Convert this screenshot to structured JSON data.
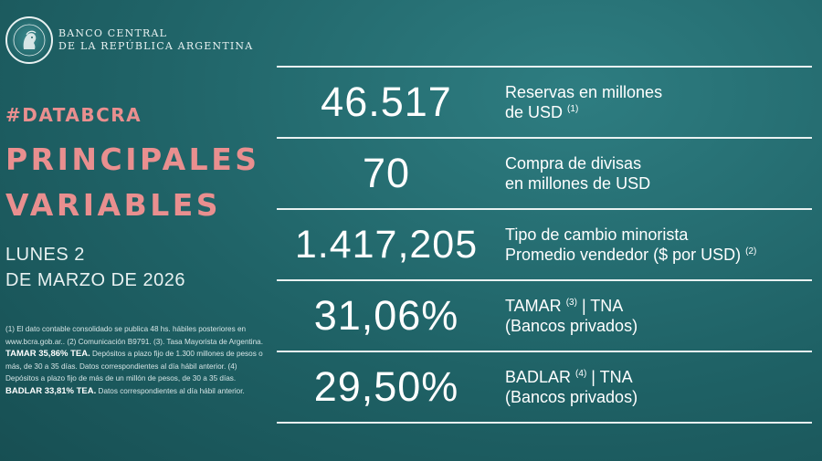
{
  "brand": {
    "line1": "BANCO CENTRAL",
    "line2": "DE LA REPÚBLICA ARGENTINA"
  },
  "hashtag": "#DATABCRA",
  "title": {
    "line1": "PRINCIPALES",
    "line2": "VARIABLES"
  },
  "date": {
    "line1": "LUNES 2",
    "line2": "DE MARZO DE 2026"
  },
  "notes": {
    "part1": "(1) El dato contable consolidado se publica 48 hs. hábiles posteriores en www.bcra.gob.ar.. (2) Comunicación B9791. (3). Tasa Mayorista de Argentina.",
    "tamar_tea": "TAMAR 35,86% TEA.",
    "part2": "Depósitos a plazo fijo de 1.300 millones de pesos o más, de 30 a 35 días. Datos correspondientes al día hábil anterior. (4) Depósitos a plazo fijo de más de un millón de pesos, de 30 a 35 días.",
    "badlar_tea": "BADLAR 33,81% TEA.",
    "part3": "Datos correspondientes al día hábil anterior."
  },
  "indicators": [
    {
      "value": "46.517",
      "label_line1": "Reservas en millones",
      "label_line2": "de USD",
      "note": "(1)"
    },
    {
      "value": "70",
      "label_line1": "Compra de divisas",
      "label_line2": "en millones de USD",
      "note": ""
    },
    {
      "value": "1.417,205",
      "label_line1": "Tipo de cambio minorista",
      "label_line2": "Promedio vendedor ($ por USD)",
      "note": "(2)"
    },
    {
      "value": "31,06%",
      "label_line1": "TAMAR",
      "note1": "(3)",
      "label_line1b": "| TNA",
      "label_line2": "(Bancos privados)"
    },
    {
      "value": "29,50%",
      "label_line1": "BADLAR",
      "note1": "(4)",
      "label_line1b": "| TNA",
      "label_line2": "(Bancos privados)"
    }
  ]
}
